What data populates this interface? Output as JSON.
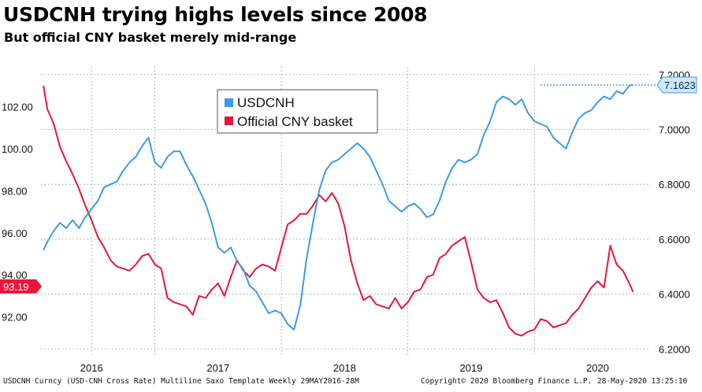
{
  "title": "USDCNH trying highs levels since 2008",
  "subtitle": "But official CNY basket merely mid-range",
  "footer": {
    "left": "USDCNH Curncy (USD-CNH Cross Rate) Multiline Saxo Template  Weekly 29MAY2016-28M",
    "center": "Copyright© 2020 Bloomberg Finance L.P.",
    "right": "28-May-2020 13:25:10"
  },
  "chart_data": {
    "type": "line",
    "x_labels": [
      "2016",
      "2017",
      "2018",
      "2019",
      "2020"
    ],
    "x_label_positions": [
      2016.0,
      2017.0,
      2018.0,
      2019.0,
      2020.0
    ],
    "x_range": [
      2015.6,
      2020.42
    ],
    "left_axis": {
      "ylim": [
        90.15,
        103.9
      ],
      "ticks": [
        92.0,
        94.0,
        96.0,
        98.0,
        100.0,
        102.0
      ],
      "tick_labels": [
        "92.00",
        "94.00",
        "96.00",
        "98.00",
        "100.00",
        "102.00"
      ]
    },
    "right_axis": {
      "ylim": [
        6.175,
        7.228
      ],
      "ticks": [
        6.2,
        6.4,
        6.6,
        6.8,
        7.0,
        7.2
      ],
      "tick_labels": [
        "6.2000",
        "6.4000",
        "6.6000",
        "6.8000",
        "7.0000",
        "7.2000"
      ]
    },
    "legend": [
      "USDCNH",
      "Official CNY basket"
    ],
    "legend_position": "top-center",
    "current_labels": {
      "usdcnh": "7.1623",
      "basket": "93.19"
    },
    "colors": {
      "usdcnh": "#3c9be8",
      "basket": "#e8163a",
      "grid": "#888888",
      "text": "#111111"
    },
    "series": [
      {
        "name": "Official CNY basket",
        "axis": "left",
        "x": [
          2015.62,
          2015.65,
          2015.7,
          2015.75,
          2015.8,
          2015.85,
          2015.9,
          2015.95,
          2016.0,
          2016.05,
          2016.1,
          2016.15,
          2016.2,
          2016.25,
          2016.3,
          2016.35,
          2016.4,
          2016.45,
          2016.5,
          2016.55,
          2016.6,
          2016.65,
          2016.7,
          2016.75,
          2016.8,
          2016.85,
          2016.9,
          2016.95,
          2017.0,
          2017.05,
          2017.1,
          2017.15,
          2017.2,
          2017.25,
          2017.3,
          2017.35,
          2017.4,
          2017.45,
          2017.5,
          2017.55,
          2017.6,
          2017.65,
          2017.7,
          2017.75,
          2017.8,
          2017.85,
          2017.9,
          2017.95,
          2018.0,
          2018.05,
          2018.1,
          2018.15,
          2018.2,
          2018.25,
          2018.3,
          2018.35,
          2018.4,
          2018.45,
          2018.5,
          2018.55,
          2018.6,
          2018.65,
          2018.7,
          2018.75,
          2018.8,
          2018.85,
          2018.9,
          2018.95,
          2019.0,
          2019.05,
          2019.1,
          2019.15,
          2019.2,
          2019.25,
          2019.3,
          2019.35,
          2019.4,
          2019.45,
          2019.5,
          2019.55,
          2019.6,
          2019.65,
          2019.7,
          2019.75,
          2019.8,
          2019.85,
          2019.9,
          2019.95,
          2020.0,
          2020.05,
          2020.1,
          2020.15,
          2020.2,
          2020.25,
          2020.28
        ],
        "values": [
          103.0,
          101.9,
          101.2,
          100.1,
          99.4,
          98.8,
          98.1,
          97.3,
          96.6,
          95.8,
          95.3,
          94.7,
          94.4,
          94.3,
          94.2,
          94.5,
          94.9,
          95.0,
          94.5,
          94.3,
          92.9,
          92.7,
          92.6,
          92.5,
          92.1,
          93.0,
          92.9,
          93.3,
          93.6,
          93.0,
          93.9,
          94.7,
          94.2,
          93.9,
          94.3,
          94.5,
          94.4,
          94.2,
          95.3,
          96.4,
          96.6,
          96.9,
          96.9,
          97.3,
          97.8,
          97.5,
          97.9,
          97.4,
          96.3,
          94.7,
          93.6,
          92.8,
          93.0,
          92.6,
          92.5,
          92.4,
          92.9,
          92.4,
          92.7,
          93.2,
          93.3,
          93.9,
          94.0,
          94.8,
          95.0,
          95.4,
          95.6,
          95.8,
          94.6,
          93.3,
          92.9,
          92.7,
          92.8,
          92.2,
          91.5,
          91.2,
          91.1,
          91.3,
          91.4,
          91.9,
          91.8,
          91.5,
          91.6,
          91.7,
          92.1,
          92.4,
          92.9,
          93.4,
          93.7,
          93.4,
          95.4,
          94.5,
          94.2,
          93.6,
          93.19
        ]
      },
      {
        "name": "USDCNH",
        "axis": "right",
        "x": [
          2015.62,
          2015.65,
          2015.7,
          2015.75,
          2015.8,
          2015.85,
          2015.9,
          2015.95,
          2016.0,
          2016.05,
          2016.1,
          2016.15,
          2016.2,
          2016.25,
          2016.3,
          2016.35,
          2016.4,
          2016.45,
          2016.5,
          2016.55,
          2016.6,
          2016.65,
          2016.7,
          2016.75,
          2016.8,
          2016.85,
          2016.9,
          2016.95,
          2017.0,
          2017.05,
          2017.1,
          2017.15,
          2017.2,
          2017.25,
          2017.3,
          2017.35,
          2017.4,
          2017.45,
          2017.5,
          2017.55,
          2017.6,
          2017.65,
          2017.7,
          2017.75,
          2017.8,
          2017.85,
          2017.9,
          2017.95,
          2018.0,
          2018.05,
          2018.1,
          2018.15,
          2018.2,
          2018.25,
          2018.3,
          2018.35,
          2018.4,
          2018.45,
          2018.5,
          2018.55,
          2018.6,
          2018.65,
          2018.7,
          2018.75,
          2018.8,
          2018.85,
          2018.9,
          2018.95,
          2019.0,
          2019.05,
          2019.1,
          2019.15,
          2019.2,
          2019.25,
          2019.3,
          2019.35,
          2019.4,
          2019.45,
          2019.5,
          2019.55,
          2019.6,
          2019.65,
          2019.7,
          2019.75,
          2019.8,
          2019.85,
          2019.9,
          2019.95,
          2020.0,
          2020.05,
          2020.1,
          2020.15,
          2020.2,
          2020.25,
          2020.28
        ],
        "values": [
          6.56,
          6.59,
          6.63,
          6.66,
          6.64,
          6.67,
          6.64,
          6.68,
          6.71,
          6.74,
          6.79,
          6.8,
          6.81,
          6.85,
          6.88,
          6.9,
          6.94,
          6.97,
          6.88,
          6.86,
          6.9,
          6.92,
          6.92,
          6.87,
          6.83,
          6.78,
          6.73,
          6.66,
          6.57,
          6.55,
          6.57,
          6.52,
          6.49,
          6.43,
          6.41,
          6.37,
          6.33,
          6.34,
          6.33,
          6.29,
          6.27,
          6.36,
          6.53,
          6.66,
          6.78,
          6.85,
          6.88,
          6.89,
          6.91,
          6.93,
          6.95,
          6.93,
          6.9,
          6.85,
          6.8,
          6.74,
          6.72,
          6.7,
          6.72,
          6.73,
          6.71,
          6.68,
          6.69,
          6.74,
          6.81,
          6.86,
          6.89,
          6.88,
          6.89,
          6.91,
          6.98,
          7.03,
          7.1,
          7.12,
          7.11,
          7.09,
          7.11,
          7.06,
          7.03,
          7.02,
          7.01,
          6.97,
          6.95,
          6.93,
          6.99,
          7.04,
          7.06,
          7.07,
          7.1,
          7.12,
          7.11,
          7.14,
          7.13,
          7.16,
          7.1623
        ]
      }
    ]
  }
}
